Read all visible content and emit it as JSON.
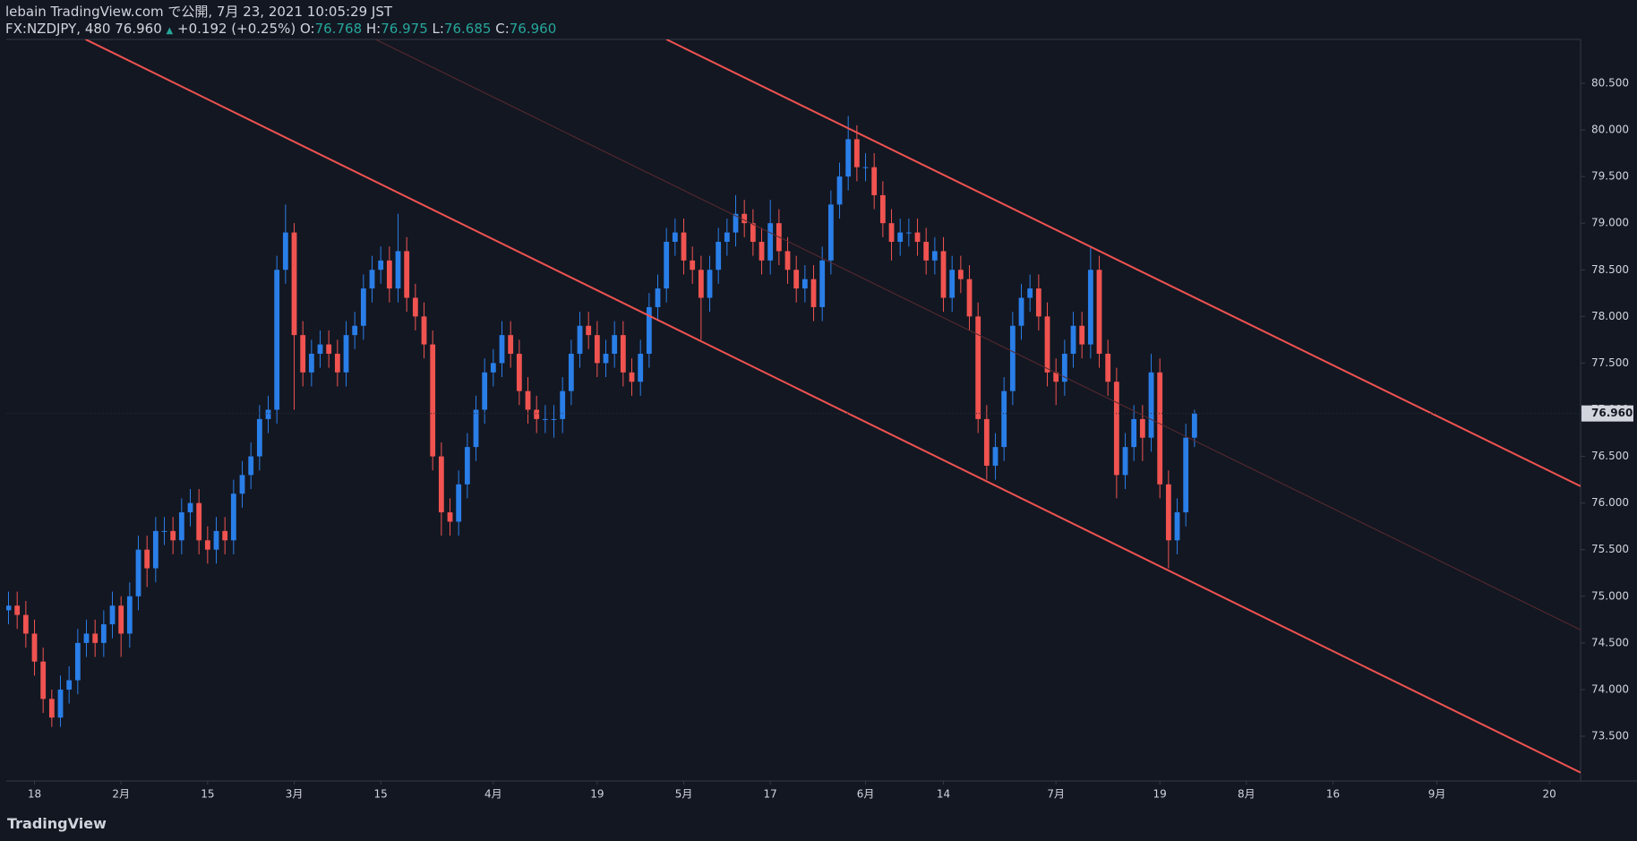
{
  "header": {
    "title": "lebain TradingView.com で公開, 7月 23, 2021 10:05:29 JST",
    "symbol": "FX:NZDJPY, 480",
    "last": "76.960",
    "change": "+0.192 (+0.25%)",
    "ohlc": [
      {
        "label": "O:",
        "value": "76.768"
      },
      {
        "label": "H:",
        "value": "76.975"
      },
      {
        "label": "L:",
        "value": "76.685"
      },
      {
        "label": "C:",
        "value": "76.960"
      }
    ]
  },
  "footer": {
    "brand": "TradingView"
  },
  "chart_data": {
    "type": "candlestick",
    "up_color": "#2a7ee8",
    "down_color": "#f05350",
    "grid": false,
    "xlim": [
      -0.26,
      181.6
    ],
    "ylim": [
      73.02,
      80.97
    ],
    "xticks": [
      {
        "value": 3,
        "label": "18"
      },
      {
        "value": 13,
        "label": "2月"
      },
      {
        "value": 23,
        "label": "15"
      },
      {
        "value": 33,
        "label": "3月"
      },
      {
        "value": 43,
        "label": "15"
      },
      {
        "value": 56,
        "label": "4月"
      },
      {
        "value": 68,
        "label": "19"
      },
      {
        "value": 78,
        "label": "5月"
      },
      {
        "value": 88,
        "label": "17"
      },
      {
        "value": 99,
        "label": "6月"
      },
      {
        "value": 108,
        "label": "14"
      },
      {
        "value": 121,
        "label": "7月"
      },
      {
        "value": 133,
        "label": "19"
      },
      {
        "value": 143,
        "label": "8月"
      },
      {
        "value": 153,
        "label": "16"
      },
      {
        "value": 165,
        "label": "9月"
      },
      {
        "value": 178,
        "label": "20"
      }
    ],
    "yticks": [
      {
        "value": 73.5,
        "label": "73.500"
      },
      {
        "value": 74,
        "label": "74.000"
      },
      {
        "value": 74.5,
        "label": "74.500"
      },
      {
        "value": 75,
        "label": "75.000"
      },
      {
        "value": 75.5,
        "label": "75.500"
      },
      {
        "value": 76,
        "label": "76.000"
      },
      {
        "value": 76.5,
        "label": "76.500"
      },
      {
        "value": 77,
        "label": "77.000"
      },
      {
        "value": 77.5,
        "label": "77.500"
      },
      {
        "value": 78,
        "label": "78.000"
      },
      {
        "value": 78.5,
        "label": "78.500"
      },
      {
        "value": 79,
        "label": "79.000"
      },
      {
        "value": 79.5,
        "label": "79.500"
      },
      {
        "value": 80,
        "label": "80.000"
      },
      {
        "value": 80.5,
        "label": "80.500"
      }
    ],
    "last_price": {
      "value": 76.96,
      "label": "76.960"
    },
    "x": [
      0,
      1,
      2,
      3,
      4,
      5,
      6,
      7,
      8,
      9,
      10,
      11,
      12,
      13,
      14,
      15,
      16,
      17,
      18,
      19,
      20,
      21,
      22,
      23,
      24,
      25,
      26,
      27,
      28,
      29,
      30,
      31,
      32,
      33,
      34,
      35,
      36,
      37,
      38,
      39,
      40,
      41,
      42,
      43,
      44,
      45,
      46,
      47,
      48,
      49,
      50,
      51,
      52,
      53,
      54,
      55,
      56,
      57,
      58,
      59,
      60,
      61,
      62,
      63,
      64,
      65,
      66,
      67,
      68,
      69,
      70,
      71,
      72,
      73,
      74,
      75,
      76,
      77,
      78,
      79,
      80,
      81,
      82,
      83,
      84,
      85,
      86,
      87,
      88,
      89,
      90,
      91,
      92,
      93,
      94,
      95,
      96,
      97,
      98,
      99,
      100,
      101,
      102,
      103,
      104,
      105,
      106,
      107,
      108,
      109,
      110,
      111,
      112,
      113,
      114,
      115,
      116,
      117,
      118,
      119,
      120,
      121,
      122,
      123,
      124,
      125,
      126,
      127,
      128,
      129,
      130,
      131,
      132,
      133,
      134,
      135,
      136,
      137
    ],
    "open": [
      74.85,
      74.9,
      74.8,
      74.6,
      74.3,
      73.9,
      73.7,
      74.0,
      74.1,
      74.5,
      74.6,
      74.5,
      74.7,
      74.9,
      74.6,
      75.0,
      75.5,
      75.3,
      75.7,
      75.7,
      75.6,
      75.9,
      76.0,
      75.6,
      75.5,
      75.7,
      75.6,
      76.1,
      76.3,
      76.5,
      76.9,
      77.0,
      78.5,
      78.9,
      77.8,
      77.4,
      77.6,
      77.7,
      77.6,
      77.4,
      77.8,
      77.9,
      78.3,
      78.5,
      78.6,
      78.3,
      78.7,
      78.2,
      78.0,
      77.7,
      76.5,
      75.9,
      75.8,
      76.2,
      76.6,
      77.0,
      77.4,
      77.5,
      77.8,
      77.6,
      77.2,
      77.0,
      76.9,
      76.9,
      76.9,
      77.2,
      77.6,
      77.9,
      77.8,
      77.5,
      77.6,
      77.8,
      77.4,
      77.3,
      77.6,
      78.1,
      78.3,
      78.8,
      78.9,
      78.6,
      78.5,
      78.2,
      78.5,
      78.8,
      78.9,
      79.1,
      79.0,
      78.8,
      78.6,
      79.0,
      78.7,
      78.5,
      78.3,
      78.4,
      78.1,
      78.6,
      79.2,
      79.5,
      79.9,
      79.6,
      79.6,
      79.3,
      79.0,
      78.8,
      78.9,
      78.9,
      78.8,
      78.6,
      78.7,
      78.2,
      78.5,
      78.4,
      78.0,
      76.9,
      76.4,
      76.6,
      77.2,
      77.9,
      78.2,
      78.3,
      78.0,
      77.4,
      77.3,
      77.6,
      77.9,
      77.7,
      78.5,
      77.6,
      77.3,
      76.3,
      76.6,
      76.9,
      76.7,
      77.4,
      76.2,
      75.6,
      75.9,
      76.7
    ],
    "high": [
      75.05,
      75.05,
      74.95,
      74.75,
      74.45,
      74.0,
      74.15,
      74.25,
      74.65,
      74.75,
      74.75,
      74.85,
      75.05,
      75.0,
      75.15,
      75.65,
      75.65,
      75.85,
      75.85,
      75.85,
      76.05,
      76.15,
      76.15,
      75.75,
      75.85,
      75.85,
      76.25,
      76.45,
      76.65,
      77.05,
      77.15,
      78.65,
      79.2,
      79.0,
      77.95,
      77.75,
      77.85,
      77.85,
      77.75,
      77.95,
      78.05,
      78.45,
      78.65,
      78.75,
      78.75,
      79.1,
      78.85,
      78.35,
      78.15,
      77.85,
      76.65,
      76.05,
      76.35,
      76.75,
      77.15,
      77.55,
      77.65,
      77.95,
      77.95,
      77.75,
      77.35,
      77.15,
      77.05,
      77.05,
      77.35,
      77.75,
      78.05,
      78.05,
      77.95,
      77.75,
      77.95,
      77.95,
      77.55,
      77.75,
      78.25,
      78.45,
      78.95,
      79.05,
      79.05,
      78.75,
      78.65,
      78.65,
      78.95,
      79.05,
      79.3,
      79.25,
      79.15,
      78.95,
      79.25,
      79.15,
      78.85,
      78.65,
      78.55,
      78.55,
      78.75,
      79.35,
      79.65,
      80.15,
      80.05,
      79.75,
      79.75,
      79.45,
      79.15,
      79.05,
      79.05,
      79.05,
      78.95,
      78.85,
      78.85,
      78.65,
      78.65,
      78.55,
      78.15,
      77.05,
      76.75,
      77.35,
      78.05,
      78.35,
      78.45,
      78.45,
      78.15,
      77.55,
      77.75,
      78.05,
      78.05,
      78.75,
      78.65,
      77.75,
      77.45,
      76.75,
      77.05,
      77.05,
      77.6,
      77.55,
      76.35,
      76.05,
      76.85,
      77.0
    ],
    "low": [
      74.7,
      74.65,
      74.45,
      74.15,
      73.75,
      73.6,
      73.6,
      73.85,
      73.95,
      74.35,
      74.35,
      74.35,
      74.55,
      74.35,
      74.45,
      74.85,
      75.1,
      75.15,
      75.55,
      75.45,
      75.45,
      75.75,
      75.45,
      75.35,
      75.35,
      75.45,
      75.45,
      75.95,
      76.15,
      76.35,
      76.75,
      76.85,
      78.35,
      77.0,
      77.25,
      77.25,
      77.45,
      77.45,
      77.25,
      77.25,
      77.65,
      77.75,
      78.15,
      78.35,
      78.15,
      78.15,
      78.05,
      77.85,
      77.55,
      76.35,
      75.65,
      75.65,
      75.65,
      76.05,
      76.45,
      76.85,
      77.25,
      77.35,
      77.45,
      77.05,
      76.85,
      76.75,
      76.75,
      76.7,
      76.75,
      77.05,
      77.45,
      77.65,
      77.35,
      77.35,
      77.45,
      77.25,
      77.15,
      77.15,
      77.45,
      77.95,
      78.15,
      78.65,
      78.45,
      78.35,
      77.75,
      78.05,
      78.35,
      78.65,
      78.75,
      78.85,
      78.65,
      78.45,
      78.45,
      78.55,
      78.35,
      78.15,
      78.15,
      77.95,
      77.95,
      78.45,
      79.05,
      79.35,
      79.45,
      79.45,
      79.15,
      78.85,
      78.6,
      78.65,
      78.75,
      78.65,
      78.45,
      78.45,
      78.05,
      78.05,
      78.25,
      77.85,
      76.75,
      76.25,
      76.25,
      76.45,
      77.05,
      77.75,
      78.05,
      77.85,
      77.25,
      77.05,
      77.15,
      77.45,
      77.55,
      77.55,
      77.45,
      77.15,
      76.05,
      76.15,
      76.45,
      76.45,
      76.55,
      76.05,
      75.3,
      75.45,
      75.75,
      76.6
    ],
    "close": [
      74.9,
      74.8,
      74.6,
      74.3,
      73.9,
      73.7,
      74.0,
      74.1,
      74.5,
      74.6,
      74.5,
      74.7,
      74.9,
      74.6,
      75.0,
      75.5,
      75.3,
      75.7,
      75.7,
      75.6,
      75.9,
      76.0,
      75.6,
      75.5,
      75.7,
      75.6,
      76.1,
      76.3,
      76.5,
      76.9,
      77.0,
      78.5,
      78.9,
      77.8,
      77.4,
      77.6,
      77.7,
      77.6,
      77.4,
      77.8,
      77.9,
      78.3,
      78.5,
      78.6,
      78.3,
      78.7,
      78.2,
      78.0,
      77.7,
      76.5,
      75.9,
      75.8,
      76.2,
      76.6,
      77.0,
      77.4,
      77.5,
      77.8,
      77.6,
      77.2,
      77.0,
      76.9,
      76.9,
      76.9,
      77.2,
      77.6,
      77.9,
      77.8,
      77.5,
      77.6,
      77.8,
      77.4,
      77.3,
      77.6,
      78.1,
      78.3,
      78.8,
      78.9,
      78.6,
      78.5,
      78.2,
      78.5,
      78.8,
      78.9,
      79.1,
      79.0,
      78.8,
      78.6,
      79.0,
      78.7,
      78.5,
      78.3,
      78.4,
      78.1,
      78.6,
      79.2,
      79.5,
      79.9,
      79.6,
      79.6,
      79.3,
      79.0,
      78.8,
      78.9,
      78.9,
      78.8,
      78.6,
      78.7,
      78.2,
      78.5,
      78.4,
      78.0,
      76.9,
      76.4,
      76.6,
      77.2,
      77.9,
      78.2,
      78.3,
      78.0,
      77.4,
      77.3,
      77.6,
      77.9,
      77.7,
      78.5,
      77.6,
      77.3,
      76.3,
      76.6,
      76.9,
      76.7,
      77.4,
      76.2,
      75.6,
      75.9,
      76.7,
      76.96
    ],
    "lines": [
      {
        "x": [
          76.0,
          181.6
        ],
        "y": [
          80.97,
          76.18
        ],
        "color": "#f05350",
        "width": 2
      },
      {
        "x": [
          8.9,
          181.6
        ],
        "y": [
          80.97,
          73.11
        ],
        "color": "#f05350",
        "width": 2
      },
      {
        "x": [
          42.4,
          181.6
        ],
        "y": [
          80.97,
          74.64
        ],
        "color": "#5a2a30",
        "width": 1
      }
    ]
  }
}
